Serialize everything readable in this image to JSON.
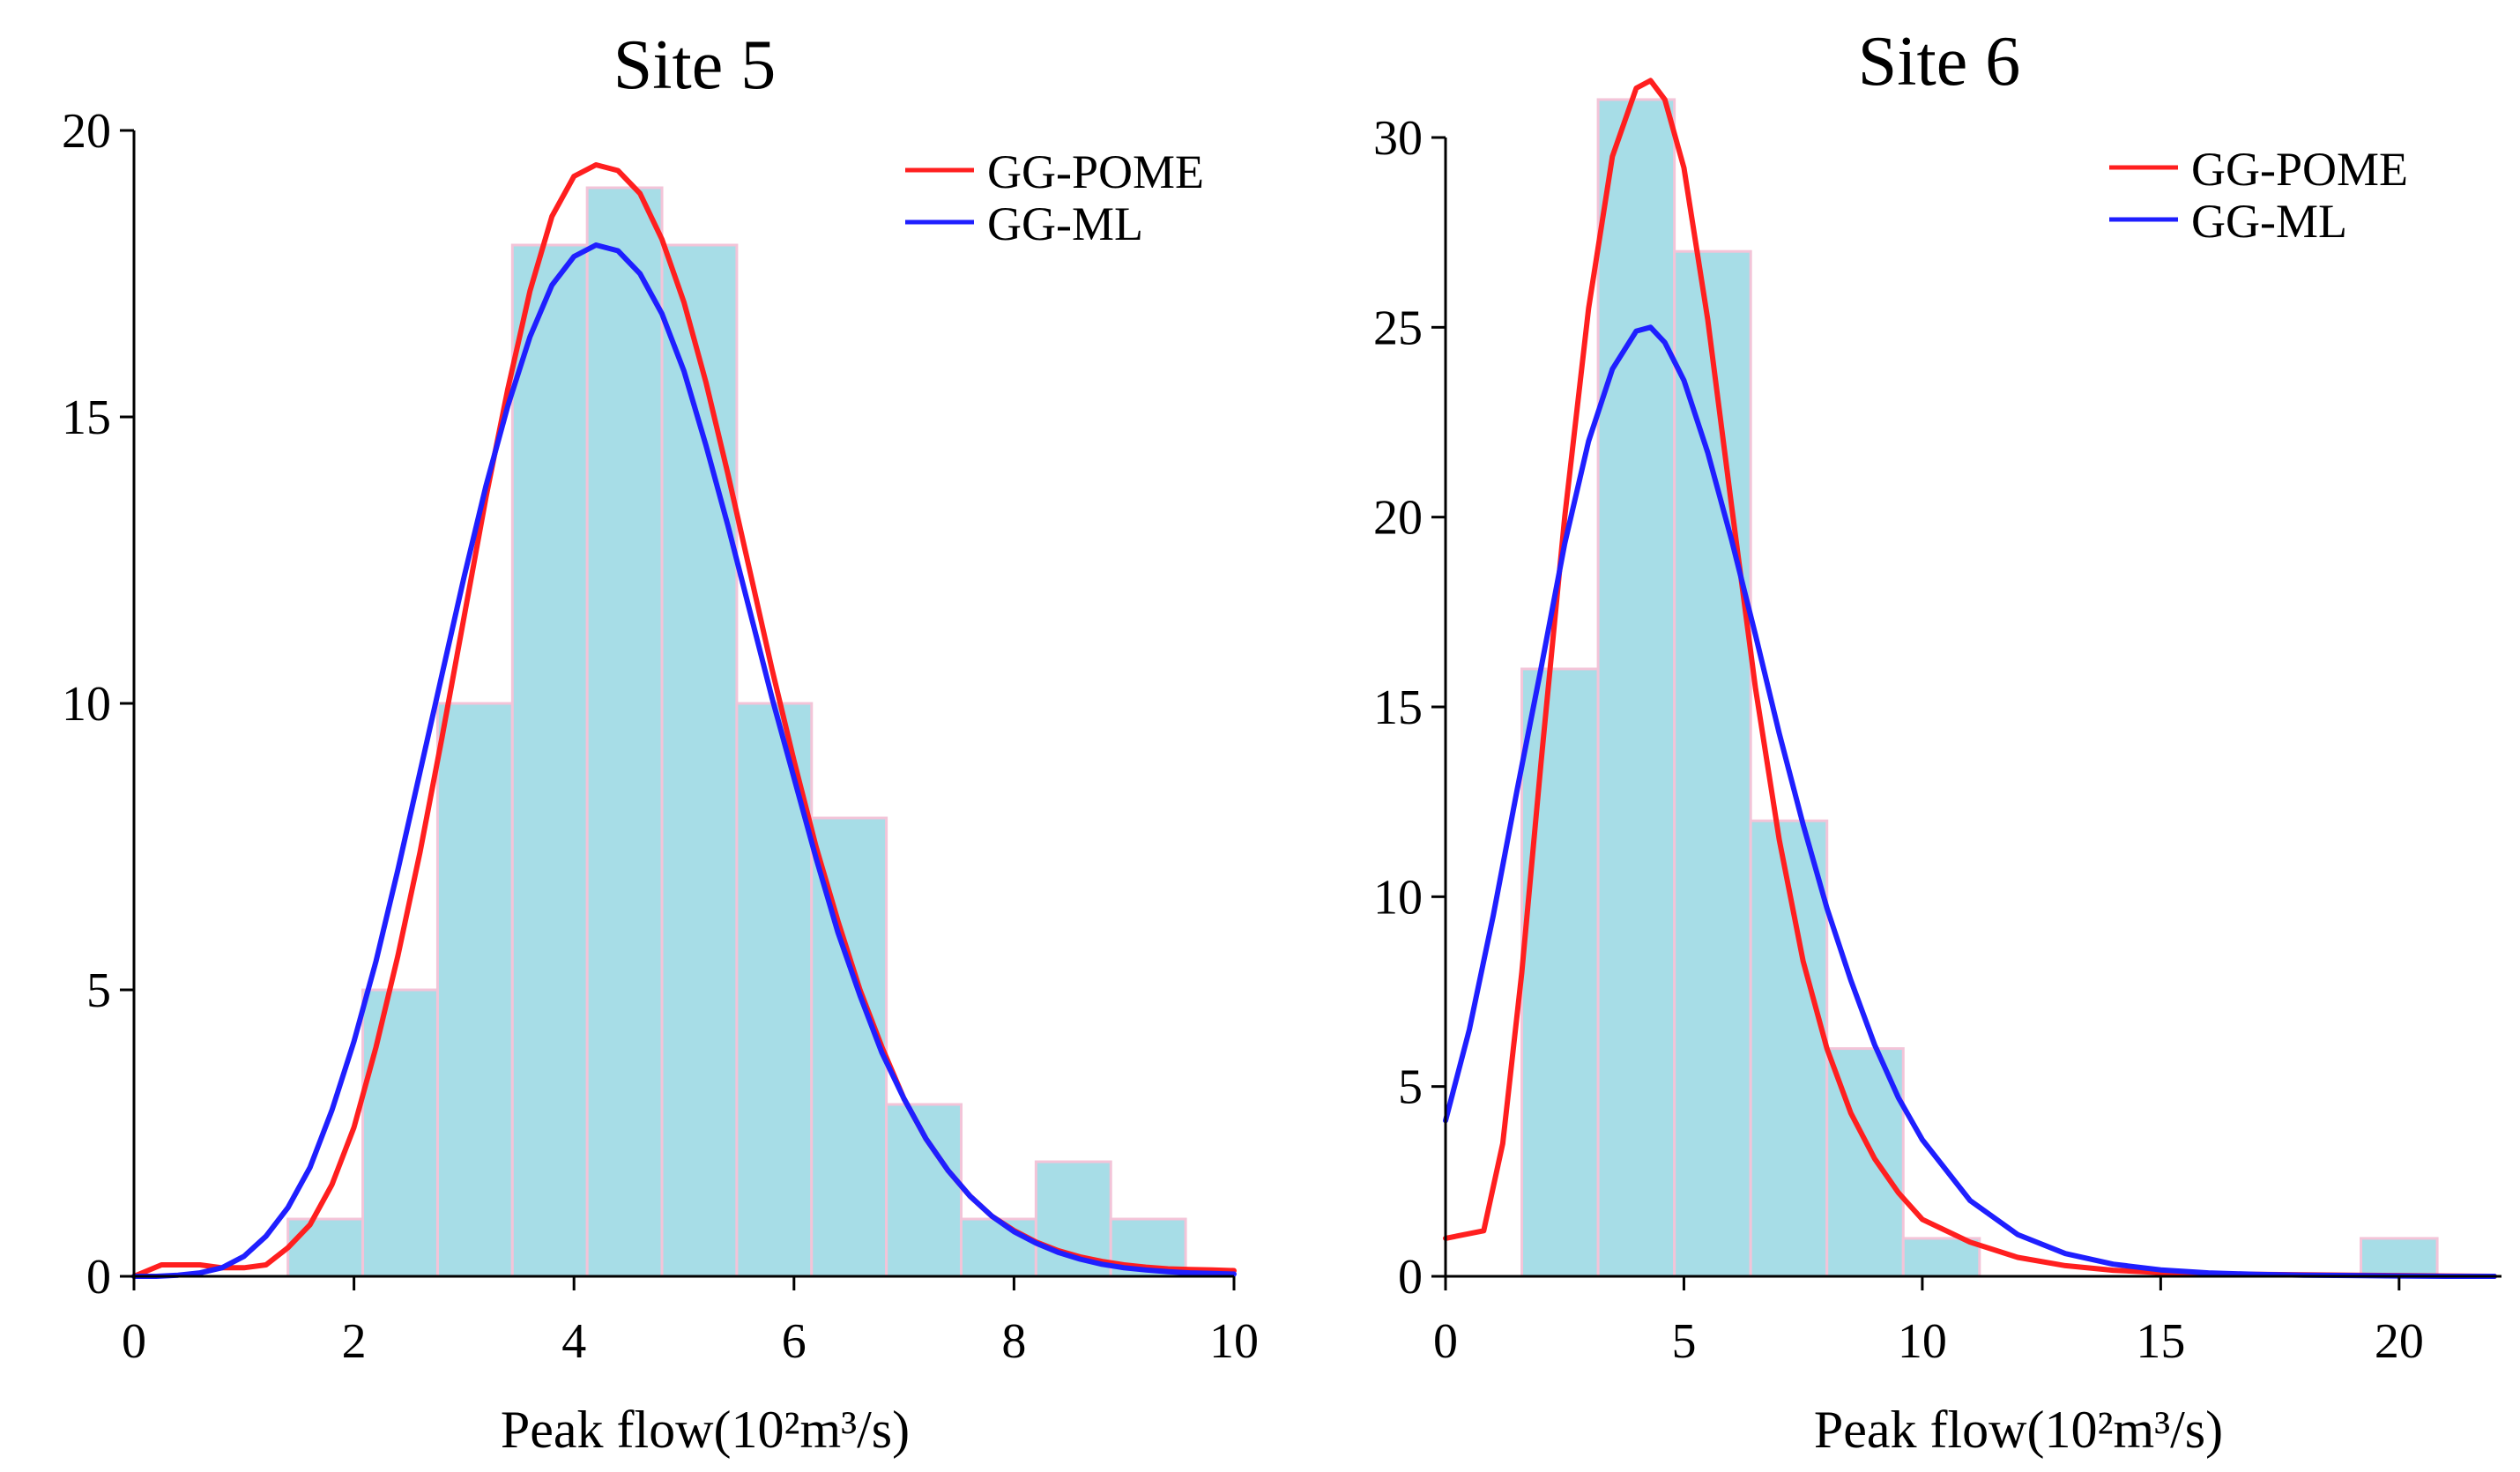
{
  "colors": {
    "bar_fill": "#a7dde7",
    "bar_edge": "#f3c4d8",
    "pome": "#ff1f1f",
    "ml": "#1f1fff"
  },
  "chart_data": [
    {
      "type": "bar",
      "title": "Site 5",
      "xlabel": "Peak flow(10²m³/s)",
      "ylabel": "",
      "xlim": [
        0,
        10
      ],
      "ylim": [
        0,
        20
      ],
      "xticks": [
        0,
        2,
        4,
        6,
        8,
        10
      ],
      "xtick_labels": [
        "0",
        "2",
        "4",
        "6",
        "8",
        "10"
      ],
      "yticks": [
        0,
        5,
        10,
        15,
        20
      ],
      "ytick_labels": [
        "0",
        "5",
        "10",
        "15",
        "20"
      ],
      "legend_position": "top-right",
      "bins": [
        {
          "start": 1.4,
          "end": 2.08,
          "count": 1
        },
        {
          "start": 2.08,
          "end": 2.76,
          "count": 5
        },
        {
          "start": 2.76,
          "end": 3.44,
          "count": 10
        },
        {
          "start": 3.44,
          "end": 4.12,
          "count": 18
        },
        {
          "start": 4.12,
          "end": 4.8,
          "count": 19
        },
        {
          "start": 4.8,
          "end": 5.48,
          "count": 18
        },
        {
          "start": 5.48,
          "end": 6.16,
          "count": 10
        },
        {
          "start": 6.16,
          "end": 6.84,
          "count": 8
        },
        {
          "start": 6.84,
          "end": 7.52,
          "count": 3
        },
        {
          "start": 7.52,
          "end": 8.2,
          "count": 1
        },
        {
          "start": 8.2,
          "end": 8.88,
          "count": 2
        },
        {
          "start": 8.88,
          "end": 9.56,
          "count": 1
        }
      ],
      "series": [
        {
          "name": "GG-POME",
          "color": "#ff1f1f",
          "x": [
            0.0,
            0.25,
            0.6,
            0.8,
            1.0,
            1.2,
            1.4,
            1.6,
            1.8,
            2.0,
            2.2,
            2.4,
            2.6,
            2.8,
            3.0,
            3.2,
            3.4,
            3.6,
            3.8,
            4.0,
            4.2,
            4.4,
            4.6,
            4.8,
            5.0,
            5.2,
            5.4,
            5.6,
            5.8,
            6.0,
            6.2,
            6.4,
            6.6,
            6.8,
            7.0,
            7.2,
            7.4,
            7.6,
            7.8,
            8.0,
            8.2,
            8.4,
            8.6,
            8.8,
            9.0,
            9.2,
            9.4,
            9.6,
            9.8,
            10.0
          ],
          "y": [
            0.0,
            0.2,
            0.2,
            0.15,
            0.15,
            0.2,
            0.5,
            0.9,
            1.6,
            2.6,
            4.0,
            5.6,
            7.4,
            9.4,
            11.5,
            13.6,
            15.5,
            17.2,
            18.5,
            19.2,
            19.4,
            19.3,
            18.9,
            18.1,
            17.0,
            15.6,
            14.0,
            12.3,
            10.6,
            9.0,
            7.5,
            6.2,
            5.0,
            4.0,
            3.1,
            2.4,
            1.85,
            1.4,
            1.05,
            0.8,
            0.6,
            0.45,
            0.34,
            0.26,
            0.2,
            0.16,
            0.13,
            0.12,
            0.11,
            0.1
          ]
        },
        {
          "name": "GG-ML",
          "color": "#1f1fff",
          "x": [
            0.0,
            0.2,
            0.4,
            0.6,
            0.8,
            1.0,
            1.2,
            1.4,
            1.6,
            1.8,
            2.0,
            2.2,
            2.4,
            2.6,
            2.8,
            3.0,
            3.2,
            3.4,
            3.6,
            3.8,
            4.0,
            4.2,
            4.4,
            4.6,
            4.8,
            5.0,
            5.2,
            5.4,
            5.6,
            5.8,
            6.0,
            6.2,
            6.4,
            6.6,
            6.8,
            7.0,
            7.2,
            7.4,
            7.6,
            7.8,
            8.0,
            8.2,
            8.4,
            8.6,
            8.8,
            9.0,
            9.2,
            9.4,
            9.6,
            9.8,
            10.0
          ],
          "y": [
            0.0,
            0.0,
            0.02,
            0.06,
            0.15,
            0.35,
            0.7,
            1.2,
            1.9,
            2.9,
            4.1,
            5.5,
            7.1,
            8.8,
            10.5,
            12.2,
            13.8,
            15.2,
            16.4,
            17.3,
            17.8,
            18.0,
            17.9,
            17.5,
            16.8,
            15.8,
            14.5,
            13.1,
            11.6,
            10.1,
            8.7,
            7.3,
            6.0,
            4.9,
            3.9,
            3.1,
            2.4,
            1.85,
            1.4,
            1.05,
            0.78,
            0.58,
            0.42,
            0.3,
            0.21,
            0.15,
            0.11,
            0.08,
            0.06,
            0.05,
            0.04
          ]
        }
      ]
    },
    {
      "type": "bar",
      "title": "Site 6",
      "xlabel": "Peak flow(10²m³/s)",
      "ylabel": "",
      "xlim": [
        0,
        22
      ],
      "ylim": [
        0,
        30
      ],
      "xticks": [
        0,
        5,
        10,
        15,
        20
      ],
      "xtick_labels": [
        "0",
        "5",
        "10",
        "15",
        "20"
      ],
      "yticks": [
        0,
        5,
        10,
        15,
        20,
        25,
        30
      ],
      "ytick_labels": [
        "0",
        "5",
        "10",
        "15",
        "20",
        "25",
        "30"
      ],
      "legend_position": "top-right",
      "bins": [
        {
          "start": 1.6,
          "end": 3.2,
          "count": 16
        },
        {
          "start": 3.2,
          "end": 4.8,
          "count": 31
        },
        {
          "start": 4.8,
          "end": 6.4,
          "count": 27
        },
        {
          "start": 6.4,
          "end": 8.0,
          "count": 12
        },
        {
          "start": 8.0,
          "end": 9.6,
          "count": 6
        },
        {
          "start": 9.6,
          "end": 11.2,
          "count": 1
        },
        {
          "start": 19.2,
          "end": 20.8,
          "count": 1
        }
      ],
      "series": [
        {
          "name": "GG-POME",
          "color": "#ff1f1f",
          "x": [
            0.0,
            0.8,
            1.2,
            1.6,
            2.0,
            2.5,
            3.0,
            3.5,
            4.0,
            4.3,
            4.6,
            5.0,
            5.5,
            6.0,
            6.5,
            7.0,
            7.5,
            8.0,
            8.5,
            9.0,
            9.5,
            10.0,
            11.0,
            12.0,
            13.0,
            14.0,
            15.0,
            16.0,
            17.0,
            18.0,
            19.0,
            20.0,
            21.0,
            22.0
          ],
          "y": [
            1.0,
            1.2,
            3.5,
            8.0,
            13.5,
            20.0,
            25.5,
            29.5,
            31.3,
            31.5,
            31.0,
            29.2,
            25.2,
            20.3,
            15.5,
            11.5,
            8.3,
            6.0,
            4.3,
            3.1,
            2.2,
            1.5,
            0.9,
            0.5,
            0.28,
            0.16,
            0.1,
            0.07,
            0.05,
            0.04,
            0.03,
            0.02,
            0.01,
            0.0
          ]
        },
        {
          "name": "GG-ML",
          "color": "#1f1fff",
          "x": [
            0.0,
            0.5,
            1.0,
            1.5,
            2.0,
            2.5,
            3.0,
            3.5,
            4.0,
            4.3,
            4.6,
            5.0,
            5.5,
            6.0,
            6.5,
            7.0,
            7.5,
            8.0,
            8.5,
            9.0,
            9.5,
            10.0,
            11.0,
            12.0,
            13.0,
            14.0,
            15.0,
            16.0,
            17.0,
            18.0,
            19.0,
            20.0,
            21.0,
            22.0
          ],
          "y": [
            4.1,
            6.5,
            9.5,
            12.8,
            16.0,
            19.3,
            22.0,
            23.9,
            24.9,
            25.0,
            24.6,
            23.6,
            21.7,
            19.4,
            16.9,
            14.3,
            11.9,
            9.7,
            7.8,
            6.1,
            4.7,
            3.6,
            2.0,
            1.1,
            0.6,
            0.32,
            0.17,
            0.09,
            0.05,
            0.03,
            0.02,
            0.01,
            0.0,
            0.0
          ]
        }
      ]
    }
  ]
}
